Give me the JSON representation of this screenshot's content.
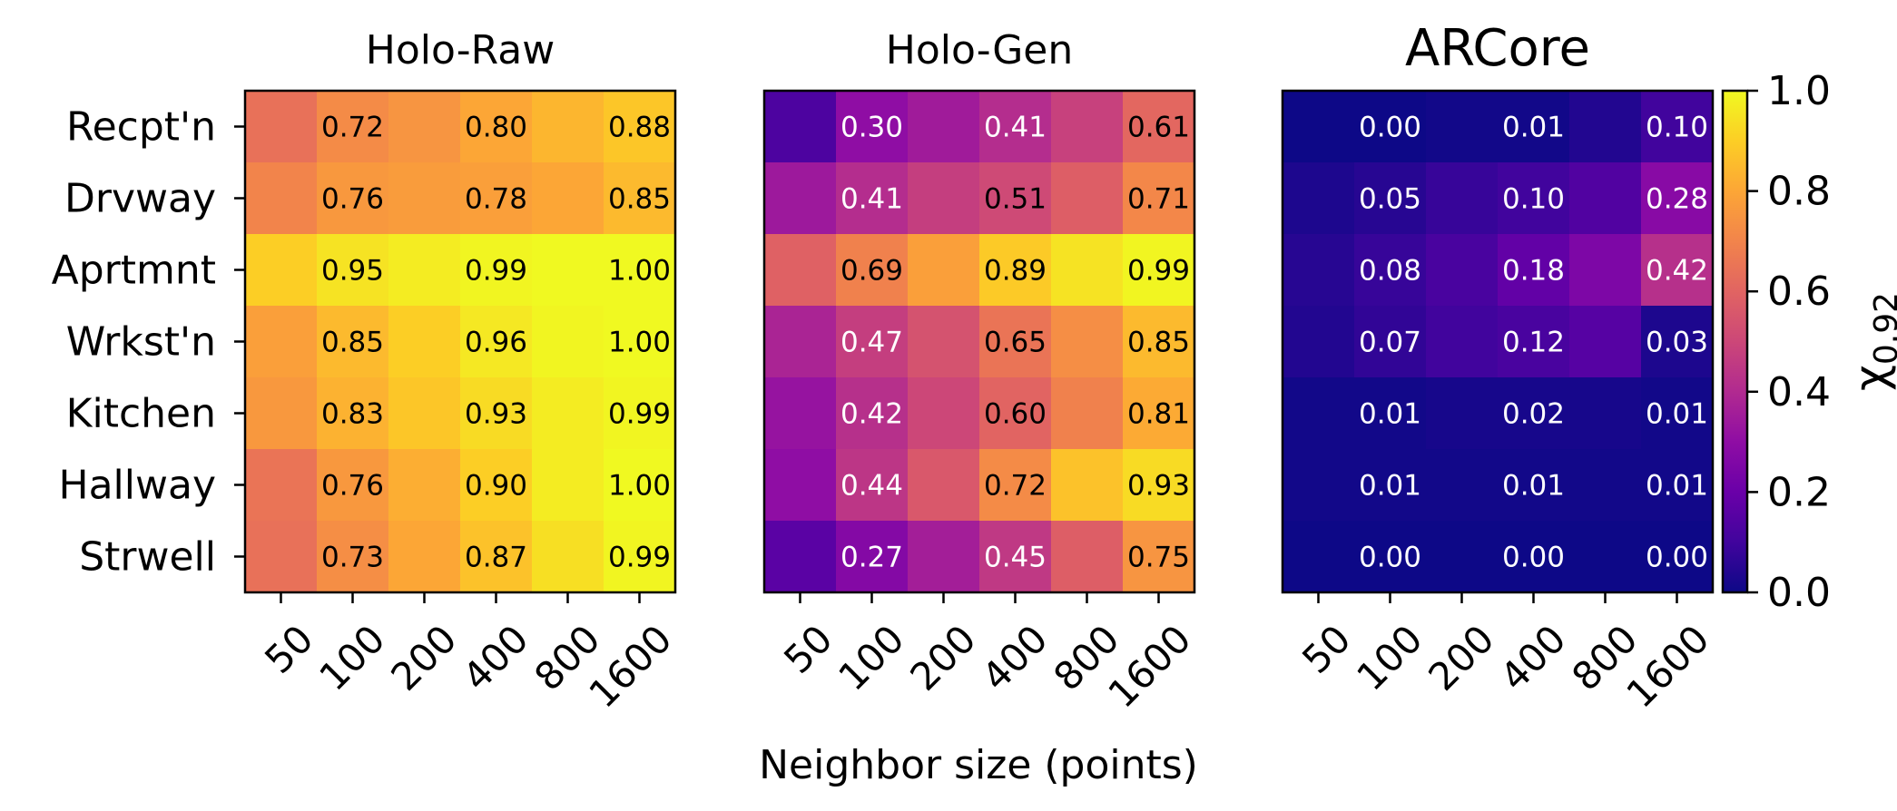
{
  "chart_data": {
    "type": "heatmap",
    "xlabel": "Neighbor size (points)",
    "x_categories": [
      "50",
      "100",
      "200",
      "400",
      "800",
      "1600"
    ],
    "y_categories": [
      "Recpt'n",
      "Drvway",
      "Aprtmnt",
      "Wrkst'n",
      "Kitchen",
      "Hallway",
      "Strwell"
    ],
    "annotated_columns": [
      1,
      3,
      5
    ],
    "value_range": [
      0.0,
      1.0
    ],
    "colormap": "plasma",
    "colorbar": {
      "label": "χ0.92",
      "label_base": "χ",
      "label_sub": "0.92",
      "ticks": [
        "0.0",
        "0.2",
        "0.4",
        "0.6",
        "0.8",
        "1.0"
      ]
    },
    "panels": [
      {
        "title": "Holo-Raw",
        "values": [
          [
            0.64,
            0.72,
            0.75,
            0.8,
            0.84,
            0.88
          ],
          [
            0.7,
            0.76,
            0.77,
            0.78,
            0.8,
            0.85
          ],
          [
            0.9,
            0.95,
            0.97,
            0.99,
            1.0,
            1.0
          ],
          [
            0.78,
            0.85,
            0.9,
            0.96,
            0.99,
            1.0
          ],
          [
            0.76,
            0.83,
            0.88,
            0.93,
            0.97,
            0.99
          ],
          [
            0.65,
            0.76,
            0.82,
            0.9,
            0.97,
            1.0
          ],
          [
            0.64,
            0.73,
            0.8,
            0.87,
            0.94,
            0.99
          ]
        ]
      },
      {
        "title": "Holo-Gen",
        "values": [
          [
            0.13,
            0.3,
            0.35,
            0.41,
            0.48,
            0.61
          ],
          [
            0.34,
            0.41,
            0.47,
            0.51,
            0.58,
            0.71
          ],
          [
            0.59,
            0.69,
            0.78,
            0.89,
            0.95,
            0.99
          ],
          [
            0.38,
            0.47,
            0.54,
            0.65,
            0.73,
            0.85
          ],
          [
            0.32,
            0.42,
            0.5,
            0.6,
            0.69,
            0.81
          ],
          [
            0.3,
            0.44,
            0.56,
            0.72,
            0.87,
            0.93
          ],
          [
            0.16,
            0.27,
            0.36,
            0.45,
            0.58,
            0.75
          ]
        ]
      },
      {
        "title": "ARCore",
        "values": [
          [
            0.0,
            0.0,
            0.01,
            0.01,
            0.04,
            0.1
          ],
          [
            0.03,
            0.05,
            0.08,
            0.1,
            0.14,
            0.28
          ],
          [
            0.05,
            0.08,
            0.12,
            0.18,
            0.25,
            0.42
          ],
          [
            0.04,
            0.07,
            0.1,
            0.12,
            0.15,
            0.03
          ],
          [
            0.01,
            0.01,
            0.02,
            0.02,
            0.02,
            0.01
          ],
          [
            0.01,
            0.01,
            0.01,
            0.01,
            0.01,
            0.01
          ],
          [
            0.0,
            0.0,
            0.0,
            0.0,
            0.0,
            0.0
          ]
        ]
      }
    ]
  }
}
